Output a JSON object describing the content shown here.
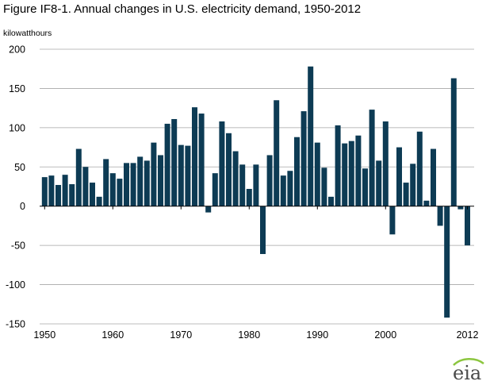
{
  "figure": {
    "title": "Figure IF8-1. Annual changes in U.S. electricity demand, 1950-2012",
    "unit_label": "kilowatthours"
  },
  "logo": {
    "text": "eia",
    "icon": "eia-logo"
  },
  "chart_data": {
    "type": "bar",
    "title": "Figure IF8-1. Annual changes in U.S. electricity demand, 1950-2012",
    "ylabel": "kilowatthours",
    "xlabel": "",
    "ylim": [
      -150,
      200
    ],
    "yticks": [
      200,
      150,
      100,
      50,
      0,
      -50,
      -100,
      -150
    ],
    "ytick_labels": [
      "200",
      "150",
      "100",
      "50",
      "0",
      "-50",
      "-100",
      "-150"
    ],
    "xtick_labels": [
      {
        "year": 1950,
        "label": "1950"
      },
      {
        "year": 1960,
        "label": "1960"
      },
      {
        "year": 1970,
        "label": "1970"
      },
      {
        "year": 1980,
        "label": "1980"
      },
      {
        "year": 1990,
        "label": "1990"
      },
      {
        "year": 2000,
        "label": "2000"
      },
      {
        "year": 2012,
        "label": "2012"
      }
    ],
    "grid": true,
    "bar_color": "#0d3b54",
    "x": [
      1950,
      1951,
      1952,
      1953,
      1954,
      1955,
      1956,
      1957,
      1958,
      1959,
      1960,
      1961,
      1962,
      1963,
      1964,
      1965,
      1966,
      1967,
      1968,
      1969,
      1970,
      1971,
      1972,
      1973,
      1974,
      1975,
      1976,
      1977,
      1978,
      1979,
      1980,
      1981,
      1982,
      1983,
      1984,
      1985,
      1986,
      1987,
      1988,
      1989,
      1990,
      1991,
      1992,
      1993,
      1994,
      1995,
      1996,
      1997,
      1998,
      1999,
      2000,
      2001,
      2002,
      2003,
      2004,
      2005,
      2006,
      2007,
      2008,
      2009,
      2010,
      2011,
      2012
    ],
    "values": [
      37,
      39,
      27,
      40,
      28,
      73,
      50,
      30,
      12,
      60,
      42,
      35,
      55,
      55,
      63,
      58,
      81,
      65,
      105,
      111,
      78,
      77,
      126,
      118,
      -8,
      42,
      108,
      93,
      70,
      53,
      22,
      53,
      -61,
      65,
      135,
      39,
      45,
      88,
      121,
      178,
      81,
      49,
      12,
      103,
      80,
      83,
      90,
      48,
      123,
      58,
      108,
      -36,
      75,
      30,
      54,
      95,
      7,
      73,
      -25,
      -142,
      163,
      -4,
      -50
    ]
  }
}
